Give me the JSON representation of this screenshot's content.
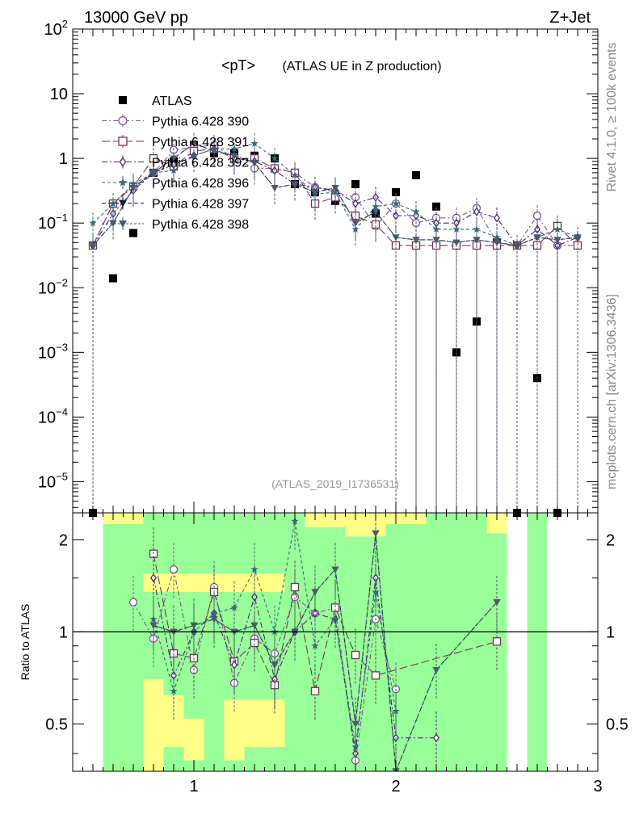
{
  "header": {
    "left": "13000 GeV pp",
    "right": "Z+Jet"
  },
  "side": {
    "rivet": "Rivet 4.1.0, ≥ 100k events",
    "mcplots": "mcplots.cern.ch [arXiv:1306.3436]"
  },
  "colors": {
    "atlas": "#000000",
    "p390": "#7a5a8a",
    "p391": "#6a3a52",
    "p392": "#4a2a70",
    "p396": "#3a6878",
    "p397": "#1c1c48",
    "p398": "#4a5a6a",
    "band_green": "#99ff99",
    "band_yellow": "#ffff88"
  },
  "chart_data": [
    {
      "type": "scatter",
      "title": "<pT>",
      "subtitle": "(ATLAS UE in Z production)",
      "watermark": "(ATLAS_2019_I1736531)",
      "xlim": [
        0.4,
        3.0
      ],
      "ylim": [
        3.3e-06,
        100
      ],
      "yscale": "log",
      "y_tick_labels": [
        "10^{-5}",
        "10^{-4}",
        "10^{-3}",
        "10^{-2}",
        "10^{-1}",
        "1",
        "10",
        "10^{2}"
      ],
      "x": [
        0.5,
        0.6,
        0.7,
        0.8,
        0.9,
        1.0,
        1.1,
        1.2,
        1.3,
        1.4,
        1.5,
        1.6,
        1.7,
        1.8,
        1.9,
        2.0,
        2.1,
        2.2,
        2.3,
        2.4,
        2.5,
        2.6,
        2.7,
        2.8,
        2.9
      ],
      "series": [
        {
          "name": "ATLAS",
          "marker": "square",
          "values": [
            3e-06,
            0.014,
            0.07,
            0.6,
            0.9,
            1.6,
            1.2,
            1.2,
            1.1,
            1.0,
            0.4,
            0.3,
            0.22,
            0.4,
            0.14,
            0.3,
            0.55,
            0.18,
            0.001,
            0.003,
            0.05,
            3e-06,
            0.0004,
            3e-06,
            null
          ]
        },
        {
          "name": "Pythia 6.428 390",
          "marker": "circle-open",
          "values": [
            0.045,
            0.2,
            0.36,
            0.6,
            1.35,
            1.5,
            1.6,
            1.0,
            0.7,
            0.7,
            0.6,
            0.36,
            0.3,
            0.25,
            0.09,
            0.2,
            0.1,
            0.12,
            0.12,
            0.17,
            0.05,
            0.045,
            0.13,
            0.045,
            0.045
          ]
        },
        {
          "name": "Pythia 6.428 391",
          "marker": "square-open",
          "values": [
            0.045,
            0.2,
            0.37,
            1.0,
            0.75,
            1.3,
            1.4,
            1.0,
            1.0,
            0.7,
            0.6,
            0.2,
            0.25,
            0.13,
            0.095,
            0.045,
            0.045,
            0.045,
            0.045,
            0.045,
            0.045,
            0.045,
            0.045,
            0.09,
            0.045
          ]
        },
        {
          "name": "Pythia 6.428 392",
          "marker": "diamond-open",
          "values": [
            0.045,
            0.14,
            0.32,
            0.6,
            0.8,
            1.1,
            1.4,
            1.0,
            0.9,
            0.65,
            0.4,
            0.36,
            0.32,
            0.2,
            0.25,
            0.13,
            0.13,
            0.1,
            0.1,
            0.15,
            0.12,
            0.045,
            0.08,
            0.045,
            0.06
          ]
        },
        {
          "name": "Pythia 6.428 396",
          "marker": "star",
          "values": [
            0.1,
            0.2,
            0.4,
            0.6,
            0.65,
            1.1,
            1.4,
            1.4,
            1.7,
            1.0,
            0.55,
            0.28,
            0.3,
            0.08,
            0.18,
            0.2,
            0.15,
            0.08,
            0.08,
            0.08,
            0.06,
            0.045,
            0.06,
            0.08,
            0.06
          ]
        },
        {
          "name": "Pythia 6.428 397",
          "marker": "triangle-down",
          "values": [
            0.045,
            0.1,
            0.35,
            0.6,
            1.0,
            1.7,
            1.3,
            1.1,
            0.85,
            0.35,
            0.4,
            0.3,
            0.35,
            0.1,
            0.15,
            0.06,
            0.055,
            0.055,
            0.05,
            0.055,
            0.05,
            0.045,
            0.06,
            0.055,
            0.06
          ]
        },
        {
          "name": "Pythia 6.428 398",
          "marker": "triangle-down",
          "values": [
            0.045,
            0.1,
            0.35,
            0.6,
            1.0,
            1.7,
            1.3,
            1.1,
            0.85,
            0.35,
            0.4,
            0.3,
            0.35,
            0.1,
            0.15,
            0.06,
            0.055,
            0.055,
            0.05,
            0.055,
            0.05,
            0.045,
            0.06,
            0.055,
            0.06
          ]
        }
      ]
    },
    {
      "type": "scatter",
      "ylabel": "Ratio to ATLAS",
      "xlim": [
        0.4,
        3.0
      ],
      "ylim": [
        0.35,
        2.45
      ],
      "yscale": "log",
      "y_tick_labels": [
        "0.5",
        "1",
        "2"
      ],
      "x_tick_labels": [
        "1",
        "2",
        "3"
      ],
      "reference_line": 1,
      "band_green": [
        [
          0.55,
          0.75,
          0.35,
          2.45
        ],
        [
          0.75,
          0.95,
          0.35,
          2.45
        ],
        [
          0.95,
          1.15,
          0.35,
          2.45
        ],
        [
          1.15,
          1.45,
          0.35,
          2.45
        ],
        [
          1.45,
          2.55,
          0.35,
          2.45
        ],
        [
          2.65,
          2.75,
          0.35,
          2.45
        ]
      ],
      "band_yellow": [
        [
          0.55,
          0.75,
          2.25,
          2.45
        ],
        [
          0.75,
          0.85,
          0.35,
          0.7
        ],
        [
          0.85,
          0.95,
          0.42,
          0.62
        ],
        [
          0.95,
          1.05,
          0.38,
          0.52
        ],
        [
          1.15,
          1.25,
          0.38,
          0.6
        ],
        [
          1.25,
          1.45,
          0.42,
          0.6
        ],
        [
          0.75,
          1.45,
          1.35,
          1.55
        ],
        [
          1.55,
          1.75,
          2.2,
          2.45
        ],
        [
          1.75,
          1.95,
          2.05,
          2.45
        ],
        [
          1.95,
          2.15,
          2.25,
          2.45
        ],
        [
          2.45,
          2.55,
          2.1,
          2.45
        ]
      ],
      "series": [
        {
          "name": "Pythia 6.428 390",
          "values": [
            null,
            null,
            1.25,
            0.95,
            1.6,
            0.75,
            1.4,
            0.68,
            0.95,
            0.85,
            1.3,
            1.15,
            1.2,
            0.38,
            1.1,
            0.65,
            null,
            null,
            null,
            null,
            null,
            null,
            null,
            null,
            null
          ]
        },
        {
          "name": "Pythia 6.428 391",
          "values": [
            null,
            null,
            null,
            1.8,
            0.85,
            0.82,
            1.35,
            0.8,
            0.92,
            0.67,
            1.4,
            0.64,
            1.2,
            0.84,
            0.72,
            null,
            null,
            null,
            null,
            null,
            0.93,
            null,
            null,
            null,
            null
          ]
        },
        {
          "name": "Pythia 6.428 392",
          "values": [
            null,
            null,
            null,
            1.5,
            0.72,
            1.0,
            1.15,
            0.78,
            1.3,
            0.7,
            1.0,
            1.15,
            1.1,
            0.4,
            1.5,
            0.45,
            null,
            0.45,
            null,
            null,
            null,
            null,
            null,
            null,
            null
          ]
        },
        {
          "name": "Pythia 6.428 396",
          "values": [
            null,
            null,
            null,
            1.1,
            0.64,
            1.0,
            1.15,
            1.2,
            1.6,
            1.0,
            2.3,
            0.9,
            1.1,
            0.42,
            1.35,
            0.55,
            null,
            null,
            null,
            null,
            null,
            null,
            null,
            null,
            null
          ]
        },
        {
          "name": "Pythia 6.428 397",
          "values": [
            null,
            null,
            null,
            1.05,
            1.0,
            1.05,
            1.1,
            1.0,
            1.05,
            0.78,
            1.0,
            1.35,
            1.6,
            0.5,
            2.1,
            0.35,
            null,
            0.75,
            null,
            null,
            1.25,
            null,
            null,
            null,
            null
          ]
        },
        {
          "name": "Pythia 6.428 398",
          "values": [
            null,
            null,
            null,
            1.05,
            1.0,
            1.05,
            1.1,
            1.0,
            1.05,
            0.78,
            1.0,
            1.35,
            1.6,
            0.5,
            2.1,
            0.35,
            null,
            0.75,
            null,
            null,
            1.25,
            null,
            null,
            null,
            null
          ]
        }
      ]
    }
  ]
}
